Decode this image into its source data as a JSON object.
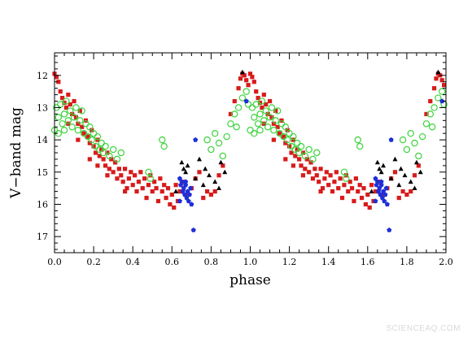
{
  "watermark": "SCIENCEAQ.COM",
  "chart_data": {
    "type": "scatter",
    "title": "",
    "xlabel": "phase",
    "ylabel": "V−band mag",
    "xlim": [
      0.0,
      2.0
    ],
    "ylim": [
      17.5,
      11.3
    ],
    "y_inverted": true,
    "x_ticks": [
      0.0,
      0.2,
      0.4,
      0.6,
      0.8,
      1.0,
      1.2,
      1.4,
      1.6,
      1.8,
      2.0
    ],
    "x_tick_labels": [
      "0.0",
      "0.2",
      "0.4",
      "0.6",
      "0.8",
      "1.0",
      "1.2",
      "1.4",
      "1.6",
      "1.8",
      "2.0"
    ],
    "y_ticks": [
      12,
      13,
      14,
      15,
      16,
      17
    ],
    "y_tick_labels": [
      "12",
      "13",
      "14",
      "15",
      "16",
      "17"
    ],
    "grid": false,
    "legend": "none",
    "series": [
      {
        "marker": "filled-square",
        "color": "#d81b1b",
        "points": [
          [
            0.0,
            11.95
          ],
          [
            0.01,
            12.05
          ],
          [
            0.02,
            12.2
          ],
          [
            0.03,
            12.5
          ],
          [
            0.04,
            12.7
          ],
          [
            0.05,
            12.85
          ],
          [
            0.06,
            13.0
          ],
          [
            0.07,
            12.6
          ],
          [
            0.08,
            12.9
          ],
          [
            0.09,
            13.2
          ],
          [
            0.1,
            12.8
          ],
          [
            0.11,
            13.3
          ],
          [
            0.12,
            13.5
          ],
          [
            0.13,
            13.1
          ],
          [
            0.14,
            13.6
          ],
          [
            0.15,
            13.8
          ],
          [
            0.16,
            13.4
          ],
          [
            0.17,
            13.9
          ],
          [
            0.18,
            14.1
          ],
          [
            0.19,
            13.7
          ],
          [
            0.2,
            14.2
          ],
          [
            0.21,
            14.4
          ],
          [
            0.22,
            14.0
          ],
          [
            0.23,
            14.5
          ],
          [
            0.24,
            14.3
          ],
          [
            0.25,
            14.6
          ],
          [
            0.26,
            14.8
          ],
          [
            0.27,
            14.4
          ],
          [
            0.28,
            14.9
          ],
          [
            0.29,
            14.6
          ],
          [
            0.3,
            15.0
          ],
          [
            0.31,
            14.7
          ],
          [
            0.32,
            15.2
          ],
          [
            0.33,
            14.9
          ],
          [
            0.34,
            15.1
          ],
          [
            0.35,
            15.3
          ],
          [
            0.36,
            14.9
          ],
          [
            0.37,
            15.5
          ],
          [
            0.38,
            15.2
          ],
          [
            0.39,
            15.0
          ],
          [
            0.4,
            15.4
          ],
          [
            0.41,
            15.1
          ],
          [
            0.42,
            15.6
          ],
          [
            0.43,
            15.3
          ],
          [
            0.44,
            15.0
          ],
          [
            0.45,
            15.5
          ],
          [
            0.46,
            15.2
          ],
          [
            0.47,
            15.8
          ],
          [
            0.48,
            15.4
          ],
          [
            0.49,
            15.1
          ],
          [
            0.5,
            15.6
          ],
          [
            0.51,
            15.3
          ],
          [
            0.52,
            15.5
          ],
          [
            0.53,
            15.9
          ],
          [
            0.54,
            15.2
          ],
          [
            0.55,
            15.6
          ],
          [
            0.56,
            15.4
          ],
          [
            0.57,
            15.8
          ],
          [
            0.58,
            15.5
          ],
          [
            0.59,
            16.0
          ],
          [
            0.6,
            15.7
          ],
          [
            0.61,
            16.1
          ],
          [
            0.62,
            15.4
          ],
          [
            0.63,
            15.9
          ],
          [
            0.64,
            15.6
          ],
          [
            0.66,
            15.3
          ],
          [
            0.68,
            15.7
          ],
          [
            0.7,
            15.5
          ],
          [
            0.72,
            15.2
          ],
          [
            0.74,
            15.0
          ],
          [
            0.76,
            15.8
          ],
          [
            0.78,
            15.6
          ],
          [
            0.8,
            15.7
          ],
          [
            0.82,
            15.6
          ],
          [
            0.84,
            15.1
          ],
          [
            0.86,
            14.8
          ],
          [
            0.9,
            13.2
          ],
          [
            0.92,
            12.8
          ],
          [
            0.94,
            12.4
          ],
          [
            0.95,
            12.1
          ],
          [
            0.96,
            11.95
          ],
          [
            0.97,
            12.0
          ],
          [
            0.98,
            12.15
          ],
          [
            0.99,
            12.3
          ],
          [
            0.07,
            13.5
          ],
          [
            0.12,
            14.0
          ],
          [
            0.18,
            14.6
          ],
          [
            0.22,
            14.8
          ],
          [
            0.27,
            15.1
          ],
          [
            0.36,
            15.6
          ]
        ]
      },
      {
        "marker": "open-circle",
        "color": "#3cd43c",
        "points": [
          [
            0.01,
            13.0
          ],
          [
            0.02,
            13.3
          ],
          [
            0.03,
            12.9
          ],
          [
            0.04,
            13.5
          ],
          [
            0.05,
            13.2
          ],
          [
            0.06,
            12.8
          ],
          [
            0.07,
            13.4
          ],
          [
            0.08,
            13.1
          ],
          [
            0.09,
            13.6
          ],
          [
            0.1,
            13.3
          ],
          [
            0.11,
            13.0
          ],
          [
            0.12,
            13.7
          ],
          [
            0.13,
            13.4
          ],
          [
            0.14,
            13.1
          ],
          [
            0.15,
            13.8
          ],
          [
            0.16,
            13.5
          ],
          [
            0.17,
            13.9
          ],
          [
            0.18,
            13.6
          ],
          [
            0.19,
            14.0
          ],
          [
            0.2,
            13.8
          ],
          [
            0.21,
            14.2
          ],
          [
            0.22,
            13.9
          ],
          [
            0.23,
            14.3
          ],
          [
            0.24,
            14.1
          ],
          [
            0.25,
            14.4
          ],
          [
            0.26,
            14.2
          ],
          [
            0.28,
            14.5
          ],
          [
            0.3,
            14.3
          ],
          [
            0.32,
            14.6
          ],
          [
            0.34,
            14.4
          ],
          [
            0.48,
            15.0
          ],
          [
            0.49,
            15.2
          ],
          [
            0.55,
            14.0
          ],
          [
            0.56,
            14.2
          ],
          [
            0.78,
            14.0
          ],
          [
            0.8,
            14.3
          ],
          [
            0.82,
            13.8
          ],
          [
            0.84,
            14.1
          ],
          [
            0.86,
            14.5
          ],
          [
            0.88,
            13.9
          ],
          [
            0.9,
            13.5
          ],
          [
            0.92,
            13.2
          ],
          [
            0.93,
            13.6
          ],
          [
            0.94,
            13.0
          ],
          [
            0.96,
            12.7
          ],
          [
            0.98,
            12.5
          ],
          [
            0.99,
            12.9
          ],
          [
            0.0,
            13.7
          ],
          [
            0.02,
            13.8
          ],
          [
            0.05,
            13.7
          ]
        ]
      },
      {
        "marker": "filled-triangle",
        "color": "#000000",
        "points": [
          [
            0.65,
            14.7
          ],
          [
            0.66,
            14.9
          ],
          [
            0.67,
            15.0
          ],
          [
            0.68,
            14.8
          ],
          [
            0.72,
            15.2
          ],
          [
            0.74,
            14.6
          ],
          [
            0.76,
            15.4
          ],
          [
            0.77,
            14.9
          ],
          [
            0.79,
            15.1
          ],
          [
            0.82,
            15.3
          ],
          [
            0.84,
            15.5
          ],
          [
            0.85,
            14.7
          ],
          [
            0.87,
            15.0
          ],
          [
            0.62,
            15.6
          ],
          [
            0.96,
            11.9
          ]
        ]
      },
      {
        "marker": "filled-pentagon",
        "color": "#1f2fd8",
        "points": [
          [
            0.64,
            15.2
          ],
          [
            0.645,
            15.4
          ],
          [
            0.65,
            15.3
          ],
          [
            0.655,
            15.6
          ],
          [
            0.66,
            15.5
          ],
          [
            0.665,
            15.7
          ],
          [
            0.67,
            15.4
          ],
          [
            0.675,
            15.8
          ],
          [
            0.68,
            15.6
          ],
          [
            0.685,
            15.9
          ],
          [
            0.69,
            15.7
          ],
          [
            0.695,
            15.5
          ],
          [
            0.7,
            16.0
          ],
          [
            0.72,
            14.0
          ],
          [
            0.71,
            16.8
          ],
          [
            0.98,
            12.8
          ],
          [
            0.64,
            15.9
          ],
          [
            0.67,
            15.3
          ]
        ]
      }
    ],
    "repeat_offset": 1.0,
    "repeat_note_hidden": ""
  }
}
